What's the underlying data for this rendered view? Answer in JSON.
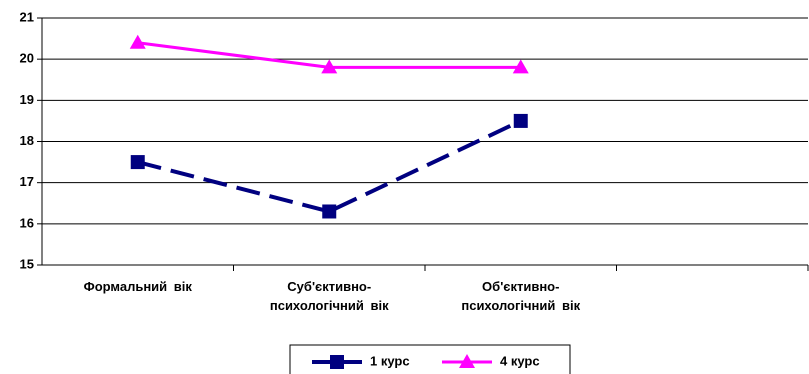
{
  "chart_data": {
    "type": "line",
    "categories": [
      "Формальний вік",
      "Суб'єктивно-психологічний вік",
      "Об'єктивно-психологічний вік",
      null
    ],
    "series": [
      {
        "name": "1 курс",
        "color": "#000080",
        "values": [
          17.5,
          16.3,
          18.5,
          null
        ],
        "marker": "square",
        "dashed": true
      },
      {
        "name": "4 курс",
        "color": "#ff00ff",
        "values": [
          20.4,
          19.8,
          19.8,
          null
        ],
        "marker": "triangle",
        "dashed": false
      }
    ],
    "ylim": [
      15,
      21
    ],
    "yticks": [
      15,
      16,
      17,
      18,
      19,
      20,
      21
    ],
    "grid": true,
    "legend": "bottom"
  }
}
